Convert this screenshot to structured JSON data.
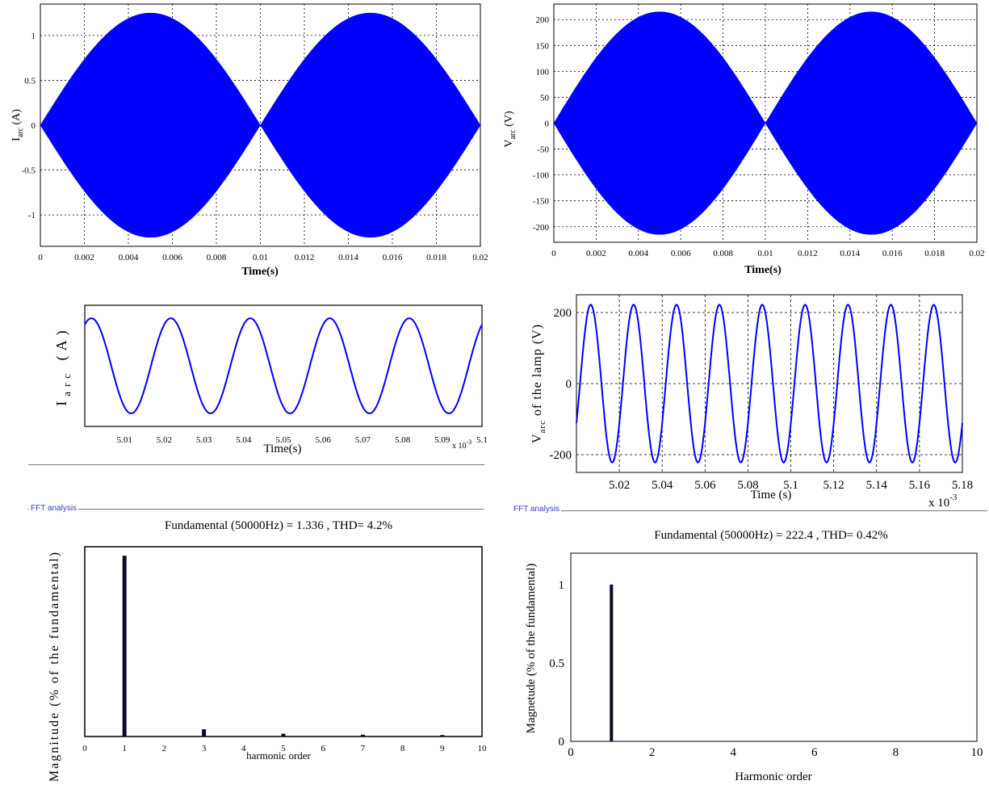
{
  "colors": {
    "signal": "#0000ff",
    "bar": "#0a0a28",
    "axis": "#000000",
    "grid": "#000000",
    "separator": "#777777"
  },
  "fft_tags": {
    "left": "FFT analysis",
    "right": "FFT analysis"
  },
  "chart_data": [
    {
      "id": "iarc-envelope",
      "type": "area",
      "ylabel_main": "I",
      "ylabel_sub": "arc",
      "ylabel_rest": " (A)",
      "xlabel": "Time(s)",
      "xlim": [
        0,
        0.02
      ],
      "ylim": [
        -1.35,
        1.35
      ],
      "xticks": [
        "0",
        "0.002",
        "0.004",
        "0.006",
        "0.008",
        "0.01",
        "0.012",
        "0.014",
        "0.016",
        "0.018",
        "0.02"
      ],
      "yticks": [
        "-1",
        "-0.5",
        "0",
        "0.5",
        "1"
      ],
      "ytick_values": [
        -1,
        -0.5,
        0,
        0.5,
        1
      ],
      "envelope": {
        "amplitude": 1.25,
        "mains_frequency_hz": 50
      },
      "grid": true
    },
    {
      "id": "varc-envelope",
      "type": "area",
      "ylabel_main": "V",
      "ylabel_sub": "arc",
      "ylabel_rest": " (V)",
      "xlabel": "Time(s)",
      "xlim": [
        0,
        0.02
      ],
      "ylim": [
        -230,
        230
      ],
      "xticks": [
        "0",
        "0.002",
        "0.004",
        "0.006",
        "0.008",
        "0.01",
        "0.012",
        "0.014",
        "0.016",
        "0.018",
        "0.02"
      ],
      "yticks": [
        "-200",
        "-150",
        "-100",
        "-50",
        "0",
        "50",
        "100",
        "150",
        "200"
      ],
      "ytick_values": [
        -200,
        -150,
        -100,
        -50,
        0,
        50,
        100,
        150,
        200
      ],
      "envelope": {
        "amplitude": 215,
        "mains_frequency_hz": 50
      },
      "grid": true
    },
    {
      "id": "iarc-zoom",
      "type": "line",
      "ylabel_main": "I",
      "ylabel_sub": "arc",
      "ylabel_rest": " (A)",
      "xlabel": "Time(s)",
      "exponent": "x 10",
      "exponent_power": "-3",
      "xlim": [
        5.0,
        5.1
      ],
      "ylim": [
        -1.4,
        1.4
      ],
      "xticks": [
        "5.01",
        "5.02",
        "5.03",
        "5.04",
        "5.05",
        "5.06",
        "5.07",
        "5.08",
        "5.09",
        "5.1"
      ],
      "xtick_values": [
        5.01,
        5.02,
        5.03,
        5.04,
        5.05,
        5.06,
        5.07,
        5.08,
        5.09,
        5.1
      ],
      "signal": {
        "amplitude": 1.1,
        "period": 0.02,
        "phase_deg": 60
      },
      "grid": false
    },
    {
      "id": "varc-zoom",
      "type": "line",
      "ylabel_main": "V",
      "ylabel_sub": "arc",
      "ylabel_rest": " of the lamp (V)",
      "xlabel": "Time (s)",
      "exponent": "x 10",
      "exponent_power": "-3",
      "xlim": [
        5.0,
        5.18
      ],
      "ylim": [
        -250,
        250
      ],
      "xticks": [
        "5.02",
        "5.04",
        "5.06",
        "5.08",
        "5.1",
        "5.12",
        "5.14",
        "5.16",
        "5.18"
      ],
      "xtick_values": [
        5.02,
        5.04,
        5.06,
        5.08,
        5.1,
        5.12,
        5.14,
        5.16,
        5.18
      ],
      "yticks": [
        "-200",
        "0",
        "200"
      ],
      "ytick_values": [
        -200,
        0,
        200
      ],
      "signal": {
        "amplitude": 222,
        "period": 0.02,
        "phase_deg": -30
      },
      "grid": true
    },
    {
      "id": "iarc-fft",
      "type": "bar",
      "title": "Fundamental (50000Hz) = 1.336 , THD= 4.2%",
      "ylabel": "Magnitude (% of the fundamental)",
      "xlabel": "harmonic order",
      "xlim": [
        0,
        10
      ],
      "ylim": [
        0,
        1.05
      ],
      "xticks": [
        "0",
        "1",
        "2",
        "3",
        "4",
        "5",
        "6",
        "7",
        "8",
        "9",
        "10"
      ],
      "xtick_values": [
        0,
        1,
        2,
        3,
        4,
        5,
        6,
        7,
        8,
        9,
        10
      ],
      "bars": [
        {
          "x": 1,
          "y": 1.0
        },
        {
          "x": 3,
          "y": 0.04
        },
        {
          "x": 5,
          "y": 0.015
        },
        {
          "x": 7,
          "y": 0.01
        },
        {
          "x": 9,
          "y": 0.008
        }
      ]
    },
    {
      "id": "varc-fft",
      "type": "bar",
      "title": "Fundamental (50000Hz) = 222.4 , THD= 0.42%",
      "ylabel": "Magnetude (% of the fundamental)",
      "xlabel": "Harmonic order",
      "xlim": [
        0,
        10
      ],
      "ylim": [
        0,
        1.2
      ],
      "xticks": [
        "0",
        "2",
        "4",
        "6",
        "8",
        "10"
      ],
      "xtick_values": [
        0,
        2,
        4,
        6,
        8,
        10
      ],
      "yticks": [
        "0",
        "0.5",
        "1"
      ],
      "ytick_values": [
        0,
        0.5,
        1
      ],
      "bars": [
        {
          "x": 1,
          "y": 1.0
        }
      ]
    }
  ]
}
